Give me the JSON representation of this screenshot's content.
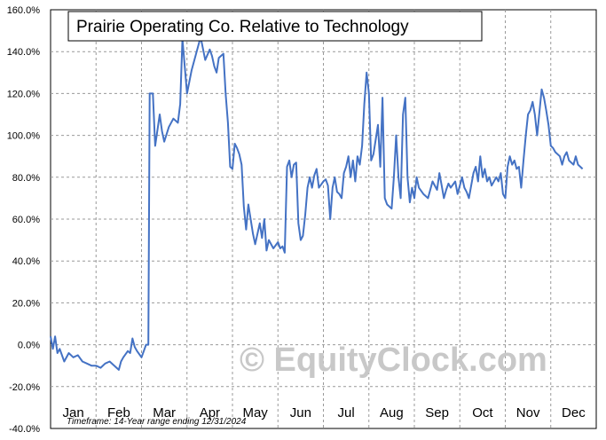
{
  "chart_data": {
    "type": "line",
    "title": "Prairie Operating Co. Relative to Technology",
    "footnote": "Timeframe: 14-Year range ending 12/31/2024",
    "watermark": "© EquityClock.com",
    "ylim": [
      -40,
      160
    ],
    "y_tick_labels": [
      "160.0%",
      "140.0%",
      "120.0%",
      "100.0%",
      "80.0%",
      "60.0%",
      "40.0%",
      "20.0%",
      "0.0%",
      "-20.0%",
      "-40.0%"
    ],
    "months": [
      "Jan",
      "Feb",
      "Mar",
      "Apr",
      "May",
      "Jun",
      "Jul",
      "Aug",
      "Sep",
      "Oct",
      "Nov",
      "Dec"
    ],
    "grid": true,
    "grid_style": "dashed",
    "line_color": "#4472c4",
    "series": [
      {
        "values": [
          [
            0.0,
            4
          ],
          [
            0.05,
            -2
          ],
          [
            0.1,
            4
          ],
          [
            0.15,
            -4
          ],
          [
            0.2,
            -2
          ],
          [
            0.3,
            -8
          ],
          [
            0.4,
            -4
          ],
          [
            0.5,
            -6
          ],
          [
            0.6,
            -5
          ],
          [
            0.7,
            -8
          ],
          [
            0.8,
            -9
          ],
          [
            0.9,
            -10
          ],
          [
            1.0,
            -10
          ],
          [
            1.1,
            -11
          ],
          [
            1.2,
            -9
          ],
          [
            1.3,
            -8
          ],
          [
            1.4,
            -10
          ],
          [
            1.5,
            -12
          ],
          [
            1.55,
            -8
          ],
          [
            1.6,
            -6
          ],
          [
            1.7,
            -3
          ],
          [
            1.75,
            -4
          ],
          [
            1.8,
            3
          ],
          [
            1.85,
            -1
          ],
          [
            1.9,
            -3
          ],
          [
            2.0,
            -6
          ],
          [
            2.05,
            -3
          ],
          [
            2.1,
            0
          ],
          [
            2.15,
            0
          ],
          [
            2.18,
            120
          ],
          [
            2.25,
            120
          ],
          [
            2.3,
            95
          ],
          [
            2.4,
            110
          ],
          [
            2.45,
            102
          ],
          [
            2.5,
            97
          ],
          [
            2.6,
            104
          ],
          [
            2.7,
            108
          ],
          [
            2.8,
            106
          ],
          [
            2.85,
            115
          ],
          [
            2.9,
            146
          ],
          [
            3.0,
            120
          ],
          [
            3.1,
            131
          ],
          [
            3.2,
            139
          ],
          [
            3.3,
            147
          ],
          [
            3.4,
            136
          ],
          [
            3.5,
            141
          ],
          [
            3.55,
            138
          ],
          [
            3.6,
            133
          ],
          [
            3.65,
            130
          ],
          [
            3.7,
            137
          ],
          [
            3.8,
            139
          ],
          [
            3.85,
            120
          ],
          [
            3.9,
            106
          ],
          [
            3.95,
            85
          ],
          [
            4.0,
            84
          ],
          [
            4.05,
            96
          ],
          [
            4.1,
            94
          ],
          [
            4.15,
            91
          ],
          [
            4.2,
            86
          ],
          [
            4.25,
            66
          ],
          [
            4.3,
            55
          ],
          [
            4.35,
            67
          ],
          [
            4.4,
            60
          ],
          [
            4.45,
            53
          ],
          [
            4.5,
            48
          ],
          [
            4.6,
            58
          ],
          [
            4.65,
            51
          ],
          [
            4.7,
            60
          ],
          [
            4.75,
            45
          ],
          [
            4.8,
            50
          ],
          [
            4.9,
            46
          ],
          [
            5.0,
            49
          ],
          [
            5.05,
            46
          ],
          [
            5.1,
            47
          ],
          [
            5.15,
            44
          ],
          [
            5.2,
            85
          ],
          [
            5.25,
            88
          ],
          [
            5.3,
            80
          ],
          [
            5.35,
            86
          ],
          [
            5.4,
            87
          ],
          [
            5.45,
            58
          ],
          [
            5.5,
            50
          ],
          [
            5.55,
            52
          ],
          [
            5.6,
            62
          ],
          [
            5.65,
            75
          ],
          [
            5.7,
            80
          ],
          [
            5.75,
            75
          ],
          [
            5.8,
            81
          ],
          [
            5.85,
            84
          ],
          [
            5.9,
            75
          ],
          [
            6.0,
            78
          ],
          [
            6.05,
            79
          ],
          [
            6.1,
            76
          ],
          [
            6.15,
            60
          ],
          [
            6.2,
            75
          ],
          [
            6.25,
            80
          ],
          [
            6.3,
            73
          ],
          [
            6.35,
            72
          ],
          [
            6.4,
            70
          ],
          [
            6.45,
            82
          ],
          [
            6.5,
            85
          ],
          [
            6.55,
            90
          ],
          [
            6.6,
            80
          ],
          [
            6.65,
            88
          ],
          [
            6.7,
            78
          ],
          [
            6.75,
            90
          ],
          [
            6.8,
            86
          ],
          [
            6.85,
            95
          ],
          [
            6.9,
            115
          ],
          [
            6.95,
            130
          ],
          [
            7.0,
            120
          ],
          [
            7.05,
            88
          ],
          [
            7.1,
            91
          ],
          [
            7.2,
            105
          ],
          [
            7.25,
            85
          ],
          [
            7.3,
            118
          ],
          [
            7.35,
            70
          ],
          [
            7.4,
            67
          ],
          [
            7.5,
            65
          ],
          [
            7.55,
            80
          ],
          [
            7.6,
            100
          ],
          [
            7.65,
            80
          ],
          [
            7.7,
            70
          ],
          [
            7.75,
            110
          ],
          [
            7.8,
            118
          ],
          [
            7.85,
            80
          ],
          [
            7.9,
            68
          ],
          [
            7.95,
            75
          ],
          [
            8.0,
            70
          ],
          [
            8.05,
            80
          ],
          [
            8.1,
            75
          ],
          [
            8.2,
            72
          ],
          [
            8.3,
            70
          ],
          [
            8.4,
            78
          ],
          [
            8.5,
            74
          ],
          [
            8.55,
            82
          ],
          [
            8.6,
            76
          ],
          [
            8.65,
            70
          ],
          [
            8.7,
            74
          ],
          [
            8.75,
            77
          ],
          [
            8.8,
            75
          ],
          [
            8.9,
            78
          ],
          [
            8.95,
            72
          ],
          [
            9.0,
            76
          ],
          [
            9.05,
            80
          ],
          [
            9.1,
            75
          ],
          [
            9.15,
            73
          ],
          [
            9.2,
            70
          ],
          [
            9.3,
            82
          ],
          [
            9.35,
            85
          ],
          [
            9.4,
            78
          ],
          [
            9.45,
            90
          ],
          [
            9.5,
            80
          ],
          [
            9.55,
            84
          ],
          [
            9.6,
            78
          ],
          [
            9.65,
            80
          ],
          [
            9.7,
            76
          ],
          [
            9.8,
            80
          ],
          [
            9.85,
            78
          ],
          [
            9.9,
            82
          ],
          [
            9.95,
            72
          ],
          [
            10.0,
            70
          ],
          [
            10.05,
            85
          ],
          [
            10.1,
            90
          ],
          [
            10.15,
            86
          ],
          [
            10.2,
            88
          ],
          [
            10.25,
            84
          ],
          [
            10.3,
            85
          ],
          [
            10.35,
            75
          ],
          [
            10.4,
            88
          ],
          [
            10.45,
            100
          ],
          [
            10.5,
            110
          ],
          [
            10.55,
            112
          ],
          [
            10.6,
            116
          ],
          [
            10.65,
            110
          ],
          [
            10.7,
            100
          ],
          [
            10.8,
            122
          ],
          [
            10.85,
            118
          ],
          [
            10.9,
            112
          ],
          [
            10.95,
            105
          ],
          [
            11.0,
            95
          ],
          [
            11.05,
            94
          ],
          [
            11.1,
            92
          ],
          [
            11.2,
            90
          ],
          [
            11.25,
            86
          ],
          [
            11.3,
            90
          ],
          [
            11.35,
            92
          ],
          [
            11.4,
            88
          ],
          [
            11.45,
            87
          ],
          [
            11.5,
            86
          ],
          [
            11.55,
            90
          ],
          [
            11.6,
            86
          ],
          [
            11.65,
            85
          ],
          [
            11.7,
            84
          ]
        ]
      }
    ]
  }
}
